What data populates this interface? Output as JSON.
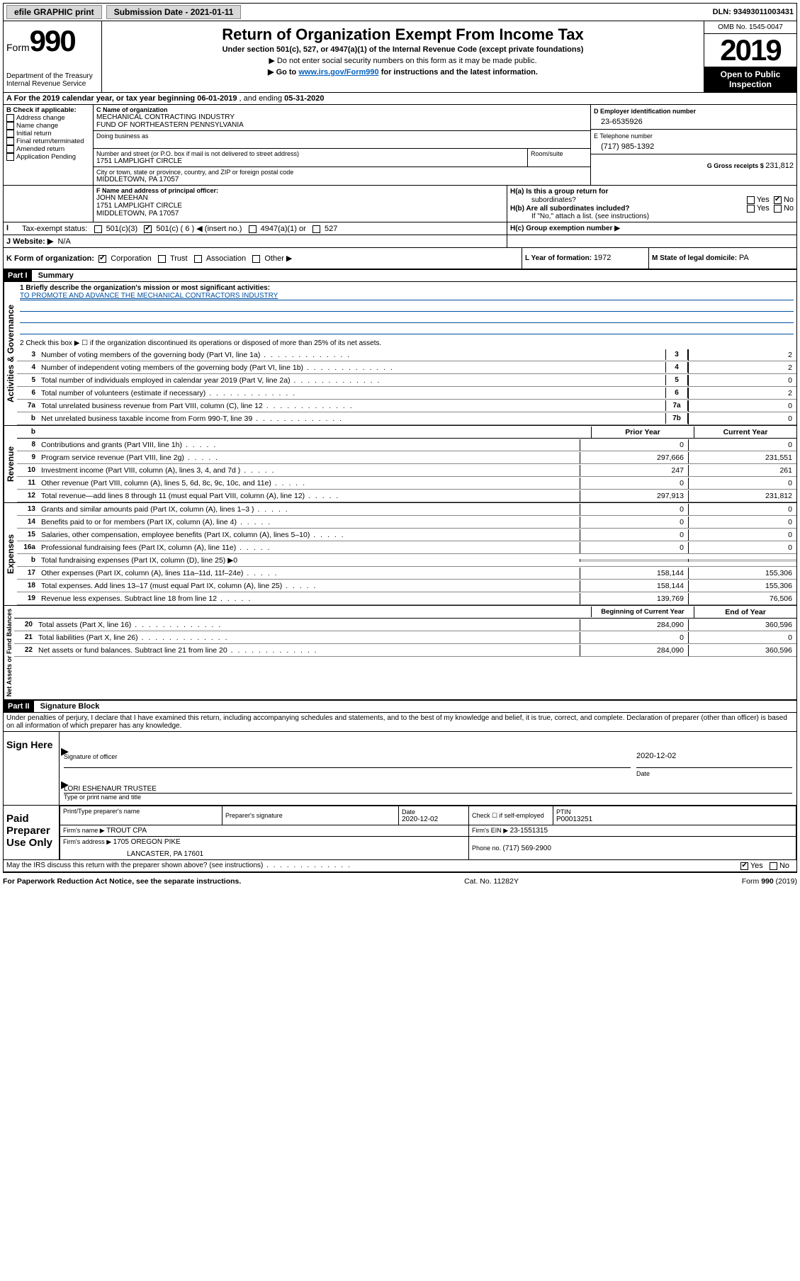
{
  "topbar": {
    "efile": "efile GRAPHIC print",
    "subdate_label": "Submission Date - ",
    "subdate": "2021-01-11",
    "dln_label": "DLN: ",
    "dln": "93493011003431"
  },
  "header": {
    "form_label": "Form",
    "form_num": "990",
    "dept1": "Department of the Treasury",
    "dept2": "Internal Revenue Service",
    "title": "Return of Organization Exempt From Income Tax",
    "subtitle": "Under section 501(c), 527, or 4947(a)(1) of the Internal Revenue Code (except private foundations)",
    "line1": "▶ Do not enter social security numbers on this form as it may be made public.",
    "line2_pre": "▶ Go to ",
    "line2_link": "www.irs.gov/Form990",
    "line2_post": " for instructions and the latest information.",
    "omb": "OMB No. 1545-0047",
    "year": "2019",
    "open1": "Open to Public",
    "open2": "Inspection"
  },
  "A": {
    "text_pre": "A For the 2019 calendar year, or tax year beginning ",
    "begin": "06-01-2019",
    "mid": " , and ending ",
    "end": "05-31-2020"
  },
  "B": {
    "label": "B Check if applicable:",
    "items": [
      "Address change",
      "Name change",
      "Initial return",
      "Final return/terminated",
      "Amended return",
      "Application Pending"
    ]
  },
  "C": {
    "name_label": "C Name of organization",
    "name1": "MECHANICAL CONTRACTING INDUSTRY",
    "name2": "FUND OF NORTHEASTERN PENNSYLVANIA",
    "dba_label": "Doing business as",
    "street_label": "Number and street (or P.O. box if mail is not delivered to street address)",
    "room_label": "Room/suite",
    "street": "1751 LAMPLIGHT CIRCLE",
    "city_label": "City or town, state or province, country, and ZIP or foreign postal code",
    "city": "MIDDLETOWN, PA  17057"
  },
  "D": {
    "label": "D Employer identification number",
    "val": "23-6535926"
  },
  "E": {
    "label": "E Telephone number",
    "val": "(717) 985-1392"
  },
  "G": {
    "label": "G Gross receipts $ ",
    "val": "231,812"
  },
  "F": {
    "label": "F  Name and address of principal officer:",
    "name": "JOHN MEEHAN",
    "addr1": "1751 LAMPLIGHT CIRCLE",
    "addr2": "MIDDLETOWN, PA  17057"
  },
  "H": {
    "a": "H(a)  Is this a group return for",
    "a2": "subordinates?",
    "b": "H(b)  Are all subordinates included?",
    "b2": "If \"No,\" attach a list. (see instructions)",
    "c": "H(c)  Group exemption number ▶",
    "yes": "Yes",
    "no": "No"
  },
  "I": {
    "label": "Tax-exempt status:",
    "o1": "501(c)(3)",
    "o2": "501(c) ( 6 ) ◀ (insert no.)",
    "o3": "4947(a)(1) or",
    "o4": "527"
  },
  "J": {
    "label": "J   Website: ▶",
    "val": "N/A"
  },
  "K": {
    "label": "K Form of organization:",
    "o1": "Corporation",
    "o2": "Trust",
    "o3": "Association",
    "o4": "Other ▶"
  },
  "L": {
    "label": "L Year of formation: ",
    "val": "1972"
  },
  "M": {
    "label": "M State of legal domicile: ",
    "val": "PA"
  },
  "partI": {
    "tab": "Part I",
    "title": "Summary",
    "q1_label": "1   Briefly describe the organization's mission or most significant activities:",
    "q1_val": "TO PROMOTE AND ADVANCE THE MECHANICAL CONTRACTORS INDUSTRY",
    "q2": "2   Check this box ▶ ☐  if the organization discontinued its operations or disposed of more than 25% of its net assets.",
    "lines_gov": [
      {
        "n": "3",
        "d": "Number of voting members of the governing body (Part VI, line 1a)",
        "box": "3",
        "v": "2"
      },
      {
        "n": "4",
        "d": "Number of independent voting members of the governing body (Part VI, line 1b)",
        "box": "4",
        "v": "2"
      },
      {
        "n": "5",
        "d": "Total number of individuals employed in calendar year 2019 (Part V, line 2a)",
        "box": "5",
        "v": "0"
      },
      {
        "n": "6",
        "d": "Total number of volunteers (estimate if necessary)",
        "box": "6",
        "v": "2"
      },
      {
        "n": "7a",
        "d": "Total unrelated business revenue from Part VIII, column (C), line 12",
        "box": "7a",
        "v": "0"
      },
      {
        "n": "b",
        "d": "Net unrelated business taxable income from Form 990-T, line 39",
        "box": "7b",
        "v": "0"
      }
    ],
    "prior": "Prior Year",
    "current": "Current Year",
    "rev": [
      {
        "n": "8",
        "d": "Contributions and grants (Part VIII, line 1h)",
        "p": "0",
        "c": "0"
      },
      {
        "n": "9",
        "d": "Program service revenue (Part VIII, line 2g)",
        "p": "297,666",
        "c": "231,551"
      },
      {
        "n": "10",
        "d": "Investment income (Part VIII, column (A), lines 3, 4, and 7d )",
        "p": "247",
        "c": "261"
      },
      {
        "n": "11",
        "d": "Other revenue (Part VIII, column (A), lines 5, 6d, 8c, 9c, 10c, and 11e)",
        "p": "0",
        "c": "0"
      },
      {
        "n": "12",
        "d": "Total revenue—add lines 8 through 11 (must equal Part VIII, column (A), line 12)",
        "p": "297,913",
        "c": "231,812"
      }
    ],
    "exp": [
      {
        "n": "13",
        "d": "Grants and similar amounts paid (Part IX, column (A), lines 1–3 )",
        "p": "0",
        "c": "0"
      },
      {
        "n": "14",
        "d": "Benefits paid to or for members (Part IX, column (A), line 4)",
        "p": "0",
        "c": "0"
      },
      {
        "n": "15",
        "d": "Salaries, other compensation, employee benefits (Part IX, column (A), lines 5–10)",
        "p": "0",
        "c": "0"
      },
      {
        "n": "16a",
        "d": "Professional fundraising fees (Part IX, column (A), line 11e)",
        "p": "0",
        "c": "0"
      },
      {
        "n": "b",
        "d": "Total fundraising expenses (Part IX, column (D), line 25) ▶0",
        "p": "",
        "c": "",
        "noval": true
      },
      {
        "n": "17",
        "d": "Other expenses (Part IX, column (A), lines 11a–11d, 11f–24e)",
        "p": "158,144",
        "c": "155,306"
      },
      {
        "n": "18",
        "d": "Total expenses. Add lines 13–17 (must equal Part IX, column (A), line 25)",
        "p": "158,144",
        "c": "155,306"
      },
      {
        "n": "19",
        "d": "Revenue less expenses. Subtract line 18 from line 12",
        "p": "139,769",
        "c": "76,506"
      }
    ],
    "begin": "Beginning of Current Year",
    "endyr": "End of Year",
    "net": [
      {
        "n": "20",
        "d": "Total assets (Part X, line 16)",
        "p": "284,090",
        "c": "360,596"
      },
      {
        "n": "21",
        "d": "Total liabilities (Part X, line 26)",
        "p": "0",
        "c": "0"
      },
      {
        "n": "22",
        "d": "Net assets or fund balances. Subtract line 21 from line 20",
        "p": "284,090",
        "c": "360,596"
      }
    ]
  },
  "vert": {
    "gov": "Activities & Governance",
    "rev": "Revenue",
    "exp": "Expenses",
    "net": "Net Assets or Fund Balances"
  },
  "partII": {
    "tab": "Part II",
    "title": "Signature Block",
    "penalty": "Under penalties of perjury, I declare that I have examined this return, including accompanying schedules and statements, and to the best of my knowledge and belief, it is true, correct, and complete. Declaration of preparer (other than officer) is based on all information of which preparer has any knowledge.",
    "sign_here": "Sign Here",
    "sig_officer": "Signature of officer",
    "date": "Date",
    "date_val": "2020-12-02",
    "name_title": "LORI ESHENAUR  TRUSTEE",
    "type_label": "Type or print name and title",
    "paid": "Paid Preparer Use Only",
    "h1": "Print/Type preparer's name",
    "h2": "Preparer's signature",
    "h3": "Date",
    "h3v": "2020-12-02",
    "h4": "Check ☐ if self-employed",
    "h5": "PTIN",
    "h5v": "P00013251",
    "firm_name_l": "Firm's name    ▶ ",
    "firm_name": "TROUT CPA",
    "firm_ein_l": "Firm's EIN ▶ ",
    "firm_ein": "23-1551315",
    "firm_addr_l": "Firm's address ▶ ",
    "firm_addr1": "1705 OREGON PIKE",
    "firm_addr2": "LANCASTER, PA  17601",
    "phone_l": "Phone no. ",
    "phone": "(717) 569-2900",
    "discuss": "May the IRS discuss this return with the preparer shown above? (see instructions)"
  },
  "footer": {
    "left": "For Paperwork Reduction Act Notice, see the separate instructions.",
    "mid": "Cat. No. 11282Y",
    "right": "Form 990 (2019)"
  }
}
